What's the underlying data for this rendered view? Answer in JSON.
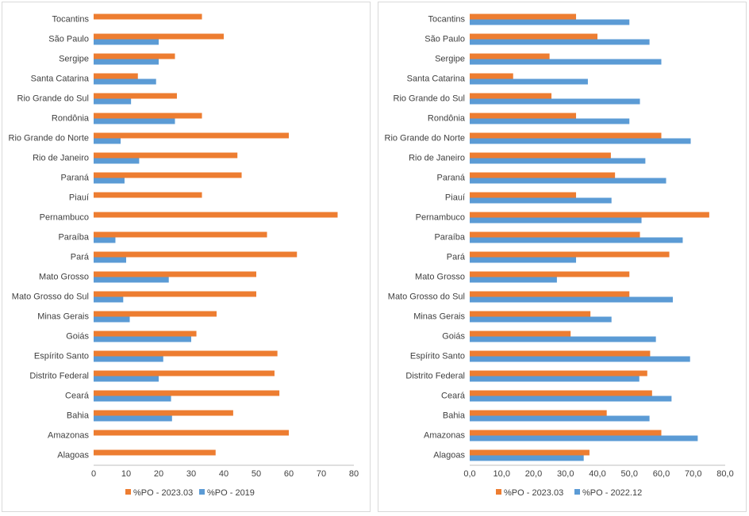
{
  "chart_data": [
    {
      "type": "bar",
      "orientation": "horizontal",
      "categories": [
        "Tocantins",
        "São Paulo",
        "Sergipe",
        "Santa Catarina",
        "Rio Grande do Sul",
        "Rondônia",
        "Rio Grande do Norte",
        "Rio de Janeiro",
        "Paraná",
        "Piauí",
        "Pernambuco",
        "Paraíba",
        "Pará",
        "Mato Grosso",
        "Mato Grosso do Sul",
        "Minas Gerais",
        "Goiás",
        "Espírito Santo",
        "Distrito Federal",
        "Ceará",
        "Bahia",
        "Amazonas",
        "Alagoas"
      ],
      "series": [
        {
          "name": "%PO - 2023.03",
          "color": "#ED7D31",
          "values": [
            33.3,
            40.0,
            25.0,
            13.6,
            25.6,
            33.3,
            60.0,
            44.2,
            45.5,
            33.3,
            75.0,
            53.3,
            62.5,
            50.0,
            50.0,
            37.8,
            31.6,
            56.5,
            55.6,
            57.1,
            42.9,
            60.0,
            37.5
          ]
        },
        {
          "name": "%PO - 2019",
          "color": "#5B9BD5",
          "values": [
            null,
            20.0,
            20.0,
            19.2,
            11.5,
            25.0,
            8.3,
            14.0,
            9.5,
            null,
            null,
            6.7,
            10.0,
            23.1,
            9.1,
            11.1,
            30.0,
            21.4,
            20.0,
            23.8,
            24.1,
            null,
            null
          ]
        }
      ],
      "xlim": [
        0,
        80
      ],
      "xticks": [
        "0",
        "10",
        "20",
        "30",
        "40",
        "50",
        "60",
        "70",
        "80"
      ],
      "legend": "bottom"
    },
    {
      "type": "bar",
      "orientation": "horizontal",
      "categories": [
        "Tocantins",
        "São Paulo",
        "Sergipe",
        "Santa Catarina",
        "Rio Grande do Sul",
        "Rondônia",
        "Rio Grande do Norte",
        "Rio de Janeiro",
        "Paraná",
        "Piauí",
        "Pernambuco",
        "Paraíba",
        "Pará",
        "Mato Grosso",
        "Mato Grosso do Sul",
        "Minas Gerais",
        "Goiás",
        "Espírito Santo",
        "Distrito Federal",
        "Ceará",
        "Bahia",
        "Amazonas",
        "Alagoas"
      ],
      "series": [
        {
          "name": "%PO - 2023.03",
          "color": "#ED7D31",
          "values": [
            33.3,
            40.0,
            25.0,
            13.6,
            25.6,
            33.3,
            60.0,
            44.2,
            45.5,
            33.3,
            75.0,
            53.3,
            62.5,
            50.0,
            50.0,
            37.8,
            31.6,
            56.5,
            55.6,
            57.1,
            42.9,
            60.0,
            37.5
          ]
        },
        {
          "name": "%PO - 2022.12",
          "color": "#5B9BD5",
          "values": [
            50.0,
            56.3,
            60.0,
            37.0,
            53.3,
            50.0,
            69.2,
            55.0,
            61.5,
            44.4,
            53.8,
            66.7,
            33.3,
            27.3,
            63.6,
            44.4,
            58.3,
            69.0,
            53.1,
            63.2,
            56.3,
            71.4,
            35.7
          ]
        }
      ],
      "xlim": [
        0,
        80
      ],
      "xticks": [
        "0,0",
        "10,0",
        "20,0",
        "30,0",
        "40,0",
        "50,0",
        "60,0",
        "70,0",
        "80,0"
      ],
      "legend": "bottom"
    }
  ]
}
